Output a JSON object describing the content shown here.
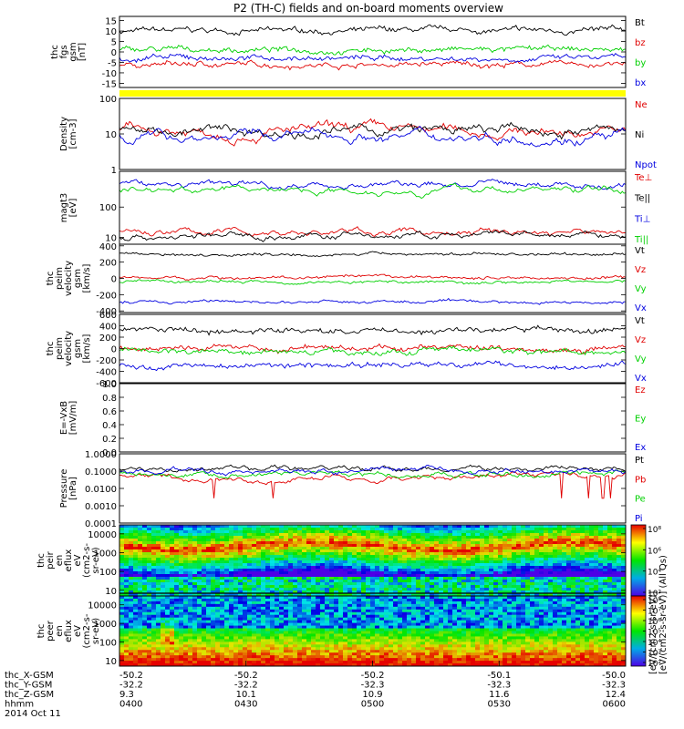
{
  "title": "P2 (TH-C) fields and on-board moments overview",
  "colors": {
    "black": "#000000",
    "red": "#e00000",
    "green": "#00d000",
    "blue": "#0000e0",
    "yellow": "#ffff00"
  },
  "x_axis": {
    "rows": [
      {
        "label": "thc_X-GSM",
        "values": [
          "-50.2",
          "-50.2",
          "-50.2",
          "-50.1",
          "-50.0"
        ]
      },
      {
        "label": "thc_Y-GSM",
        "values": [
          "-32.2",
          "-32.2",
          "-32.3",
          "-32.3",
          "-32.3"
        ]
      },
      {
        "label": "thc_Z-GSM",
        "values": [
          "9.3",
          "10.1",
          "10.9",
          "11.6",
          "12.4"
        ]
      },
      {
        "label": "hhmm",
        "values": [
          "0400",
          "0430",
          "0500",
          "0530",
          "0600"
        ]
      }
    ],
    "date": "2014 Oct 11"
  },
  "chart_data": [
    {
      "id": "fgs",
      "type": "line",
      "ylabel": [
        "thc",
        "fgs",
        "gsm",
        "[nT]"
      ],
      "ylim": [
        -17,
        17
      ],
      "ticks": [
        "15",
        "10",
        "5",
        "0",
        "-5",
        "-10",
        "-15"
      ],
      "tick_values": [
        15,
        10,
        5,
        0,
        -5,
        -10,
        -15
      ],
      "series": [
        {
          "name": "Bt",
          "color": "black",
          "base": 10
        },
        {
          "name": "bz",
          "color": "red",
          "base": -6
        },
        {
          "name": "by",
          "color": "green",
          "base": 1
        },
        {
          "name": "bx",
          "color": "blue",
          "base": -3
        }
      ]
    },
    {
      "id": "density",
      "type": "line",
      "ylabel": [
        "Density",
        "[cm-3]"
      ],
      "ylim": [
        1,
        100
      ],
      "log": true,
      "ticks": [
        "100",
        "10",
        "1"
      ],
      "tick_values": [
        100,
        10,
        1
      ],
      "series": [
        {
          "name": "Ne",
          "color": "red",
          "base": 12
        },
        {
          "name": "Ni",
          "color": "black",
          "base": 12
        },
        {
          "name": "Npot",
          "color": "blue",
          "base": 9
        }
      ]
    },
    {
      "id": "temp",
      "type": "line",
      "ylabel": [
        "magt3",
        "[eV]"
      ],
      "ylim": [
        6,
        1500
      ],
      "log": true,
      "ticks": [
        "100",
        "10"
      ],
      "tick_values": [
        100,
        10
      ],
      "series": [
        {
          "name": "Te⊥",
          "color": "red",
          "base": 15
        },
        {
          "name": "Te||",
          "color": "black",
          "base": 11
        },
        {
          "name": "Ti⊥",
          "color": "blue",
          "base": 550
        },
        {
          "name": "Ti||",
          "color": "green",
          "base": 380
        }
      ]
    },
    {
      "id": "vel_esa",
      "type": "line",
      "ylabel": [
        "thc",
        "peim",
        "velocity",
        "gsm",
        "[km/s]"
      ],
      "ylim": [
        -420,
        420
      ],
      "ticks": [
        "400",
        "200",
        "0",
        "-200",
        "-400"
      ],
      "tick_values": [
        400,
        200,
        0,
        -200,
        -400
      ],
      "series": [
        {
          "name": "Vt",
          "color": "black",
          "base": 300
        },
        {
          "name": "Vz",
          "color": "red",
          "base": 10
        },
        {
          "name": "Vy",
          "color": "green",
          "base": -40
        },
        {
          "name": "Vx",
          "color": "blue",
          "base": -290
        }
      ]
    },
    {
      "id": "vel_esa2",
      "type": "line",
      "ylabel": [
        "thc",
        "peim",
        "velocity",
        "gsm",
        "[km/s]"
      ],
      "ylim": [
        -600,
        600
      ],
      "ticks": [
        "600",
        "400",
        "200",
        "0",
        "-200",
        "-400",
        "-600"
      ],
      "tick_values": [
        600,
        400,
        200,
        0,
        -200,
        -400,
        -600
      ],
      "series": [
        {
          "name": "Vt",
          "color": "black",
          "base": 320
        },
        {
          "name": "Vz",
          "color": "red",
          "base": 10
        },
        {
          "name": "Vy",
          "color": "green",
          "base": -40
        },
        {
          "name": "Vx",
          "color": "blue",
          "base": -290
        }
      ]
    },
    {
      "id": "efield",
      "type": "line",
      "ylabel": [
        "E=-VxB",
        "[mV/m]"
      ],
      "ylim": [
        0,
        1
      ],
      "ticks": [
        "1.0",
        "0.8",
        "0.6",
        "0.4",
        "0.2",
        "0.0"
      ],
      "tick_values": [
        1,
        0.8,
        0.6,
        0.4,
        0.2,
        0
      ],
      "series": [
        {
          "name": "Ez",
          "color": "red"
        },
        {
          "name": "Ey",
          "color": "green"
        },
        {
          "name": "Ex",
          "color": "blue"
        }
      ]
    },
    {
      "id": "pressure",
      "type": "line",
      "ylabel": [
        "Pressure",
        "[nPa]"
      ],
      "ylim": [
        0.0001,
        1
      ],
      "log": true,
      "ticks": [
        "1.0000",
        "0.1000",
        "0.0100",
        "0.0010",
        "0.0001"
      ],
      "tick_values": [
        1,
        0.1,
        0.01,
        0.001,
        0.0001
      ],
      "series": [
        {
          "name": "Pt",
          "color": "black",
          "base": 0.13
        },
        {
          "name": "Pb",
          "color": "red",
          "base": 0.045
        },
        {
          "name": "Pe",
          "color": "green",
          "base": 0.07
        },
        {
          "name": "Pi",
          "color": "blue",
          "base": 0.1
        }
      ]
    },
    {
      "id": "peir",
      "type": "heatmap",
      "ylabel": [
        "thc",
        "peir",
        "en",
        "eflux",
        "eV",
        "(cm2-s-",
        "sr-eV)"
      ],
      "ylim": [
        5,
        30000
      ],
      "log": true,
      "ticks": [
        "10000",
        "1000",
        "100",
        "10"
      ],
      "tick_values": [
        10000,
        1000,
        100,
        10
      ]
    },
    {
      "id": "peer",
      "type": "heatmap",
      "ylabel": [
        "thc",
        "peer",
        "en",
        "eflux",
        "eV",
        "(cm2-s-",
        "sr-eV)"
      ],
      "ylim": [
        5,
        30000
      ],
      "log": true,
      "ticks": [
        "10000",
        "1000",
        "100",
        "10"
      ],
      "tick_values": [
        10000,
        1000,
        100,
        10
      ]
    }
  ],
  "colorbar": {
    "label": "[eV/(cm2-s-sr-eV)] (All Qs)",
    "label_overlay": "[eV/(cm2-s-sr-eV)]",
    "ticks_top": [
      "10⁸",
      "10⁶",
      "10⁴",
      "10²"
    ],
    "ticks_bottom": [
      "10⁸",
      "10⁷",
      "10⁶",
      "10⁵",
      "10⁴",
      "10³",
      "10²"
    ]
  }
}
